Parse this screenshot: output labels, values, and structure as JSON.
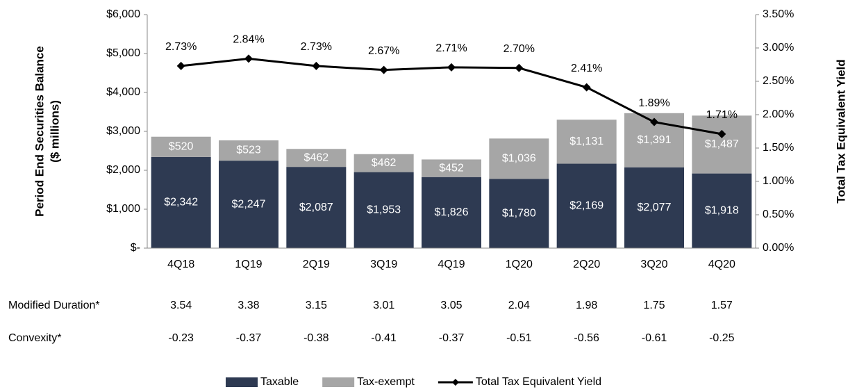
{
  "chart_data": {
    "type": "bar",
    "y_label": [
      "Period End Securities Balance",
      "($ millions)"
    ],
    "y2_label": "Total Tax Equivalent Yield",
    "categories": [
      "4Q18",
      "1Q19",
      "2Q19",
      "3Q19",
      "4Q19",
      "1Q20",
      "2Q20",
      "3Q20",
      "4Q20"
    ],
    "series": [
      {
        "name": "Taxable",
        "color": "#2e3a52",
        "stack": true,
        "values": [
          2342,
          2247,
          2087,
          1953,
          1826,
          1780,
          2169,
          2077,
          1918
        ],
        "value_labels": [
          "$2,342",
          "$2,247",
          "$2,087",
          "$1,953",
          "$1,826",
          "$1,780",
          "$2,169",
          "$2,077",
          "$1,918"
        ]
      },
      {
        "name": "Tax-exempt",
        "color": "#a6a6a6",
        "stack": true,
        "values": [
          520,
          523,
          462,
          462,
          452,
          1036,
          1131,
          1391,
          1487
        ],
        "value_labels": [
          "$520",
          "$523",
          "$462",
          "$462",
          "$452",
          "$1,036",
          "$1,131",
          "$1,391",
          "$1,487"
        ]
      },
      {
        "name": "Total Tax Equivalent Yield",
        "color": "#000000",
        "type": "line",
        "axis": "y2",
        "values": [
          2.73,
          2.84,
          2.73,
          2.67,
          2.71,
          2.7,
          2.41,
          1.89,
          1.71
        ],
        "value_labels": [
          "2.73%",
          "2.84%",
          "2.73%",
          "2.67%",
          "2.71%",
          "2.70%",
          "2.41%",
          "1.89%",
          "1.71%"
        ]
      }
    ],
    "ylim": [
      0,
      6000
    ],
    "yticks": [
      {
        "value": 0,
        "label": "$-"
      },
      {
        "value": 1000,
        "label": "$1,000"
      },
      {
        "value": 2000,
        "label": "$2,000"
      },
      {
        "value": 3000,
        "label": "$3,000"
      },
      {
        "value": 4000,
        "label": "$4,000"
      },
      {
        "value": 5000,
        "label": "$5,000"
      },
      {
        "value": 6000,
        "label": "$6,000"
      }
    ],
    "y2lim": [
      0,
      3.5
    ],
    "y2ticks": [
      {
        "value": 0,
        "label": "0.00%"
      },
      {
        "value": 0.5,
        "label": "0.50%"
      },
      {
        "value": 1,
        "label": "1.00%"
      },
      {
        "value": 1.5,
        "label": "1.50%"
      },
      {
        "value": 2,
        "label": "2.00%"
      },
      {
        "value": 2.5,
        "label": "2.50%"
      },
      {
        "value": 3,
        "label": "3.00%"
      },
      {
        "value": 3.5,
        "label": "3.50%"
      }
    ],
    "legend": "bottom",
    "table": [
      {
        "label": "Modified Duration*",
        "values": [
          3.54,
          3.38,
          3.15,
          3.01,
          3.05,
          2.04,
          1.98,
          1.75,
          1.57
        ]
      },
      {
        "label": "Convexity*",
        "values": [
          -0.23,
          -0.37,
          -0.38,
          -0.41,
          -0.37,
          -0.51,
          -0.56,
          -0.61,
          -0.25
        ]
      }
    ]
  }
}
